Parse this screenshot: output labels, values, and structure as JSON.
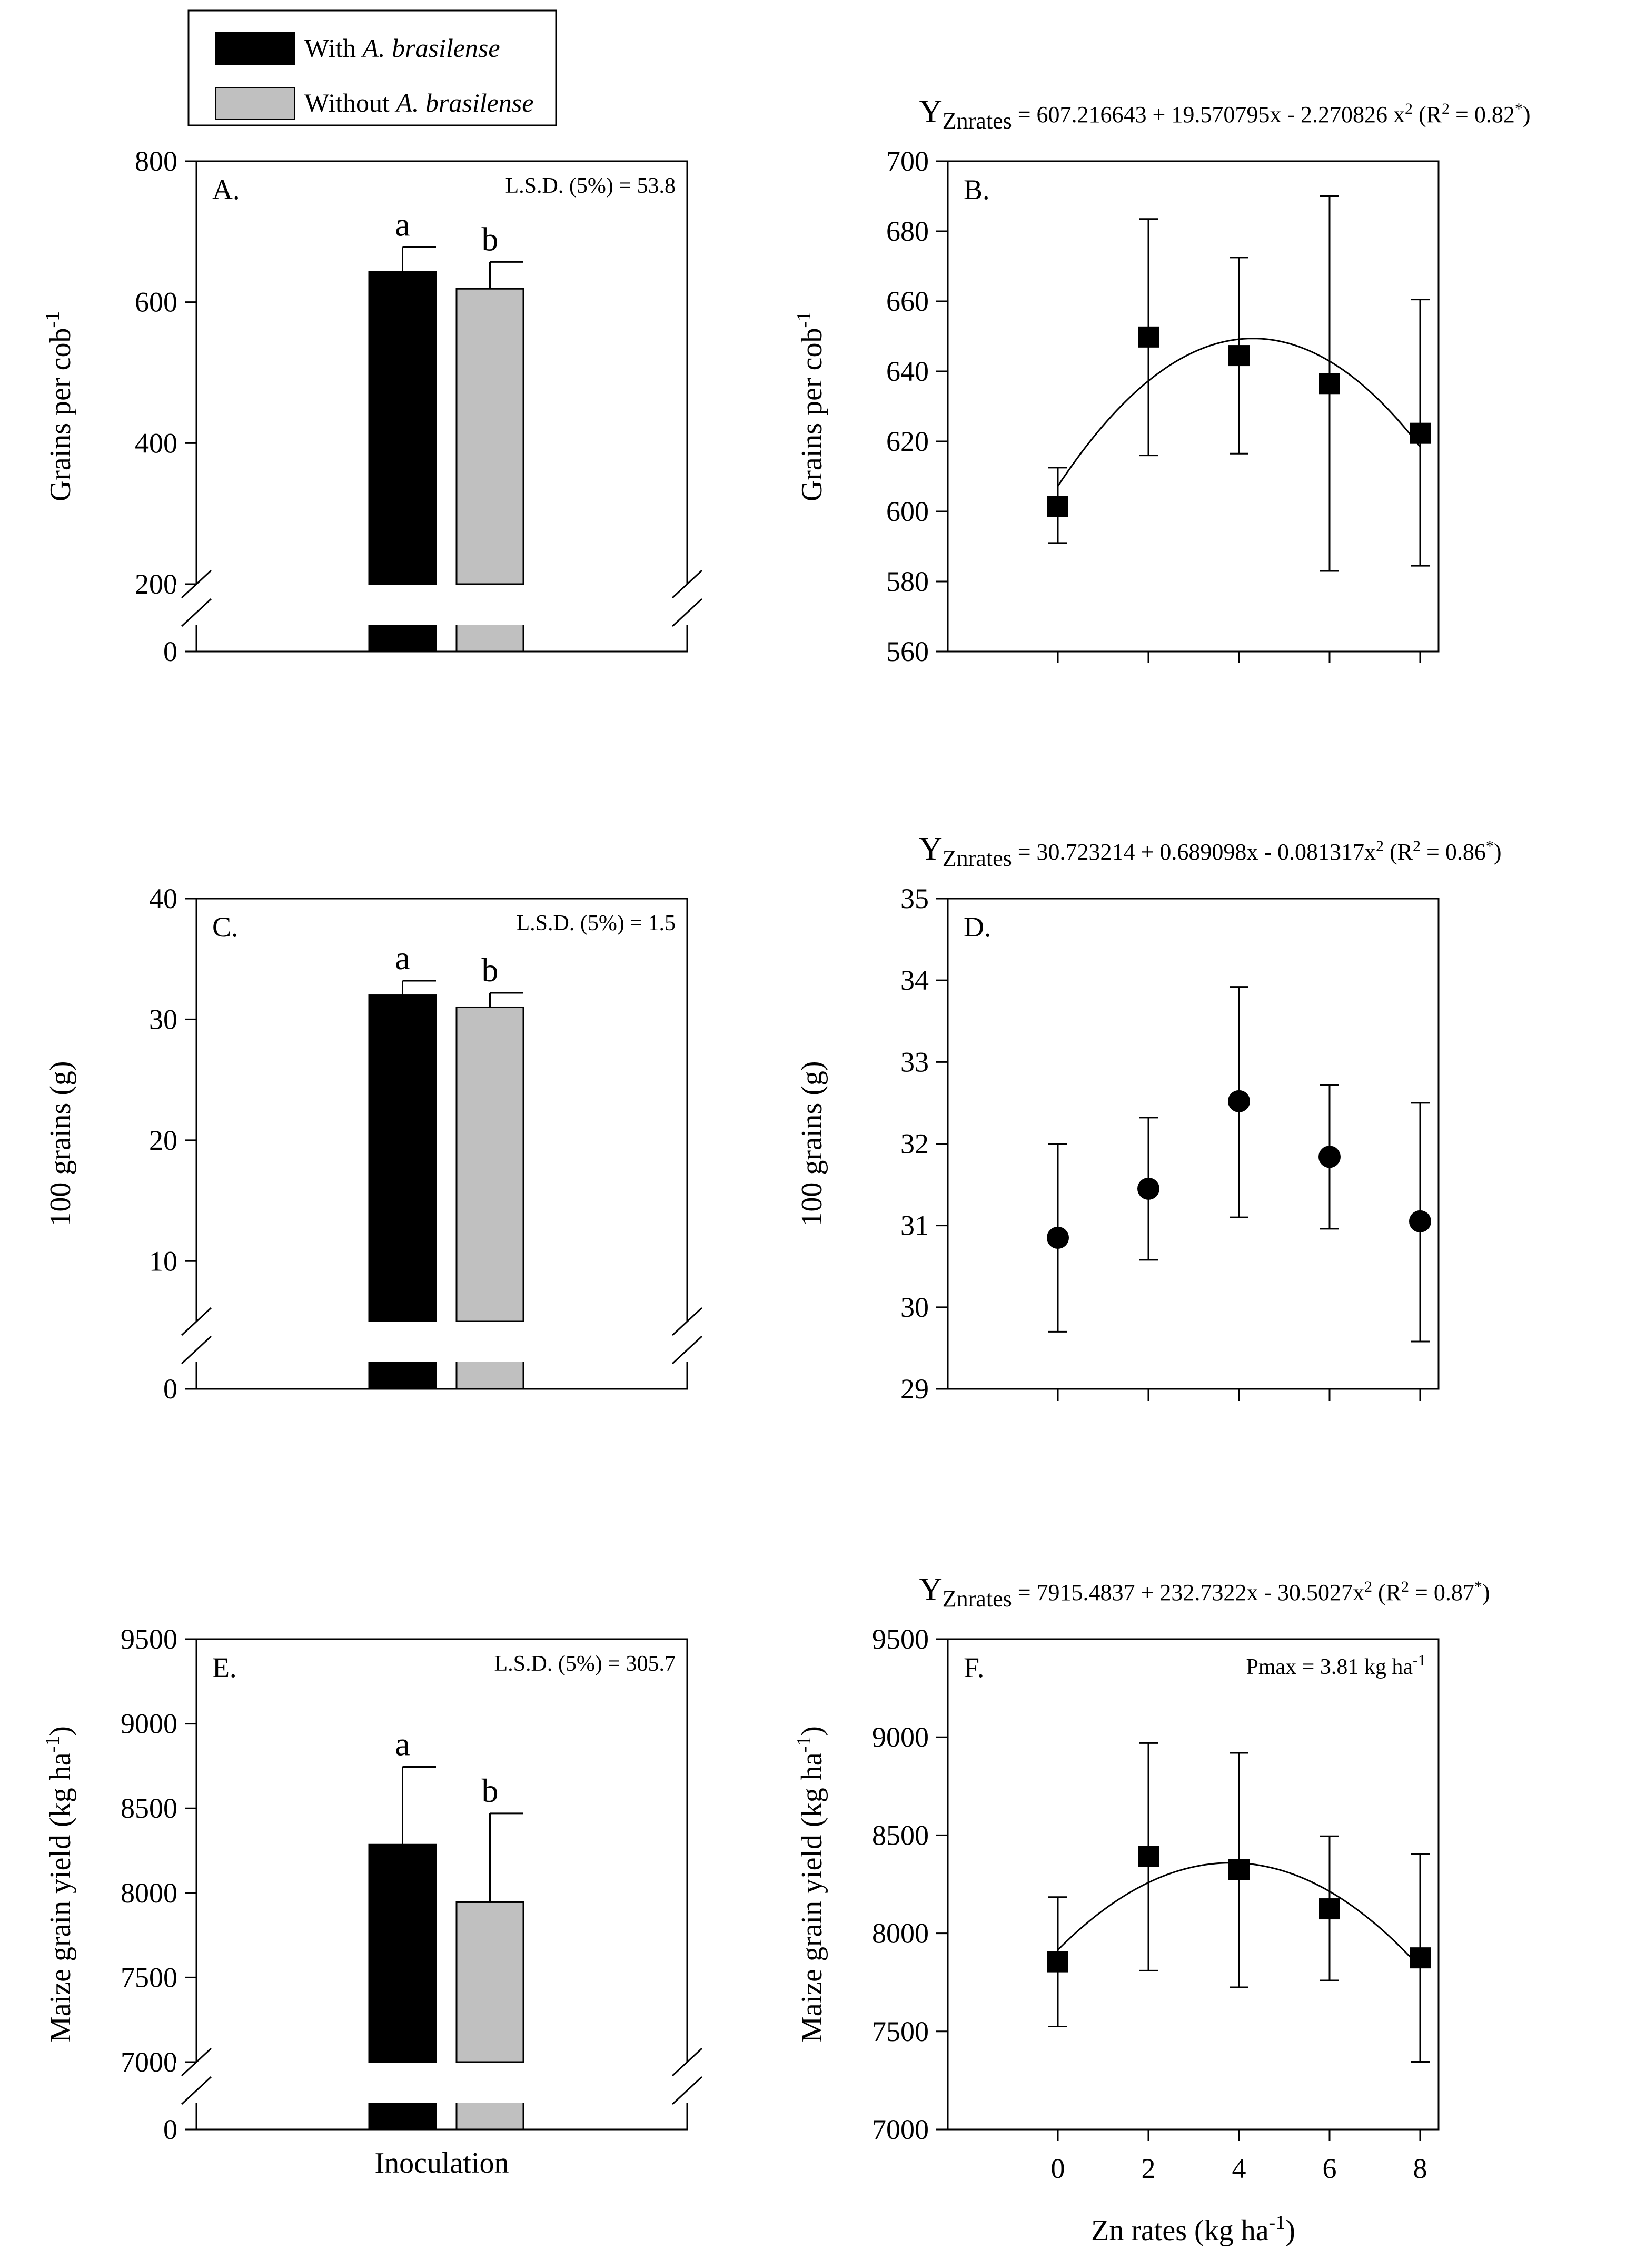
{
  "legend": {
    "items": [
      {
        "prefix": "With ",
        "italic": "A. brasilense",
        "color": "#000000"
      },
      {
        "prefix": "Without ",
        "italic": "A. brasilense",
        "color": "#c0c0c0"
      }
    ]
  },
  "colors": {
    "with": "#000000",
    "without": "#c0c0c0",
    "axis": "#000000"
  },
  "icons": {
    "square_marker": "square-marker",
    "circle_marker": "circle-marker"
  },
  "chart_data": [
    {
      "panel": "A.",
      "type": "bar",
      "ylabel": "Grains per cob",
      "ylabel_sup": "-1",
      "lsd": "L.S.D. (5%) = 53.8",
      "axis_break": true,
      "yticks": [
        "800",
        "600",
        "400",
        "200",
        "0"
      ],
      "ylim_upper": [
        200,
        800
      ],
      "series": [
        {
          "name": "With A. brasilense",
          "value": 643,
          "error": 35,
          "letter": "a"
        },
        {
          "name": "Without A. brasilense",
          "value": 619,
          "error": 38,
          "letter": "b"
        }
      ]
    },
    {
      "panel": "B.",
      "type": "scatter",
      "ylabel": "Grains per cob",
      "ylabel_sup": "-1",
      "marker": "square",
      "equation": {
        "y": "Y",
        "sub": "Znrates",
        "text": " = 607.216643 + 19.570795x - 2.270826 x",
        "pow": "2",
        "r2": " (R",
        "r2pow": "2",
        "r2val": " = 0.82",
        "star": "*",
        "close": ")"
      },
      "yticks": [
        "700",
        "680",
        "660",
        "640",
        "620",
        "600",
        "580",
        "560"
      ],
      "ylim": [
        560,
        700
      ],
      "x": [
        0,
        2,
        4,
        6,
        8
      ],
      "values": [
        601.5,
        649.8,
        644.5,
        636.5,
        622.3
      ],
      "err_hi": [
        612.5,
        683.5,
        672.5,
        690,
        660.5
      ],
      "err_lo": [
        591,
        616,
        616.5,
        583,
        584.5
      ],
      "fit": {
        "a": 607.216643,
        "b": 19.570795,
        "c": -2.270826
      }
    },
    {
      "panel": "C.",
      "type": "bar",
      "ylabel": "100 grains (g)",
      "lsd": "L.S.D. (5%) = 1.5",
      "axis_break": true,
      "yticks": [
        "40",
        "30",
        "20",
        "10",
        "0"
      ],
      "ylim_upper": [
        5,
        40
      ],
      "series": [
        {
          "name": "With A. brasilense",
          "value": 32.0,
          "error": 1.2,
          "letter": "a"
        },
        {
          "name": "Without A. brasilense",
          "value": 31.0,
          "error": 1.2,
          "letter": "b"
        }
      ]
    },
    {
      "panel": "D.",
      "type": "scatter",
      "ylabel": "100 grains (g)",
      "marker": "circle",
      "equation": {
        "y": "Y",
        "sub": "Znrates",
        "text": " = 30.723214 + 0.689098x - 0.081317x",
        "pow": "2",
        "r2": " (R",
        "r2pow": "2",
        "r2val": " = 0.86",
        "star": "*",
        "close": ")"
      },
      "yticks": [
        "35",
        "34",
        "33",
        "32",
        "31",
        "30",
        "29"
      ],
      "ylim": [
        29,
        35
      ],
      "x": [
        0,
        2,
        4,
        6,
        8
      ],
      "values": [
        30.85,
        31.45,
        32.52,
        31.84,
        31.05
      ],
      "err_hi": [
        32.0,
        32.32,
        33.92,
        32.72,
        32.5
      ],
      "err_lo": [
        29.7,
        30.58,
        31.1,
        30.96,
        29.58
      ]
    },
    {
      "panel": "E.",
      "type": "bar",
      "ylabel": "Maize grain yield (kg ha",
      "ylabel_sup": "-1",
      "ylabel_close": ")",
      "lsd": "L.S.D. (5%) = 305.7",
      "axis_break": true,
      "xlabel": "Inoculation",
      "yticks": [
        "9500",
        "9000",
        "8500",
        "8000",
        "7500",
        "7000",
        "0"
      ],
      "ylim_upper": [
        7000,
        9500
      ],
      "series": [
        {
          "name": "With A. brasilense",
          "value": 8285,
          "error": 460,
          "letter": "a"
        },
        {
          "name": "Without A. brasilense",
          "value": 7945,
          "error": 525,
          "letter": "b"
        }
      ]
    },
    {
      "panel": "F.",
      "type": "scatter",
      "ylabel": "Maize grain yield (kg ha",
      "ylabel_sup": "-1",
      "ylabel_close": ")",
      "marker": "square",
      "annotation": {
        "text": "Pmax = 3.81 kg ha",
        "sup": "-1"
      },
      "equation": {
        "y": "Y",
        "sub": "Znrates",
        "text": " = 7915.4837 + 232.7322x - 30.5027x",
        "pow": "2",
        "r2": " (R",
        "r2pow": "2",
        "r2val": " = 0.87",
        "star": "*",
        "close": ")"
      },
      "xlabel": "Zn rates (kg ha",
      "xlabel_sup": "-1",
      "xlabel_close": ")",
      "yticks": [
        "9500",
        "9000",
        "8500",
        "8000",
        "7500",
        "7000"
      ],
      "ylim": [
        7000,
        9500
      ],
      "xticks": [
        "0",
        "2",
        "4",
        "6",
        "8"
      ],
      "x": [
        0,
        2,
        4,
        6,
        8
      ],
      "values": [
        7855,
        8393,
        8325,
        8125,
        7875
      ],
      "err_hi": [
        8185,
        8970,
        8920,
        8495,
        8405
      ],
      "err_lo": [
        7525,
        7810,
        7725,
        7760,
        7345
      ],
      "fit": {
        "a": 7915.4837,
        "b": 232.7322,
        "c": -30.5027
      }
    }
  ]
}
